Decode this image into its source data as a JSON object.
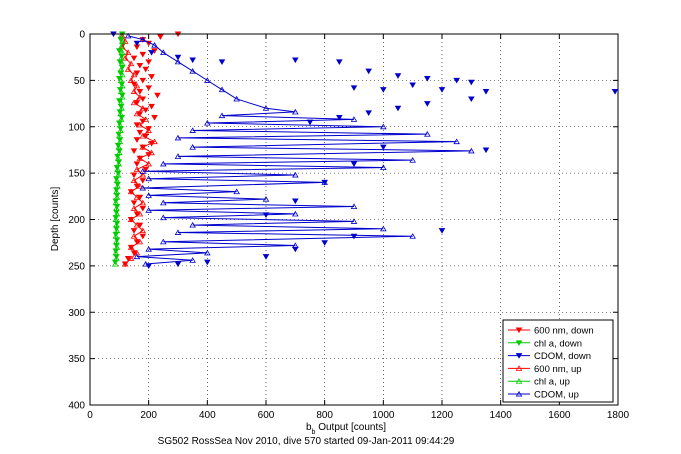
{
  "chart_data": {
    "type": "scatter",
    "xlabel": "b",
    "xlabel_sub": "b",
    "xlabel_rest": " Output [counts]",
    "ylabel": "Depth [counts]",
    "caption": "SG502 RossSea Nov 2010, dive 570 started 09-Jan-2011 09:44:29",
    "xlim": [
      0,
      1800
    ],
    "ylim": [
      0,
      400
    ],
    "y_reversed": true,
    "grid": true,
    "legend_position": "bottom-right",
    "x_ticks": [
      0,
      200,
      400,
      600,
      800,
      1000,
      1200,
      1400,
      1600,
      1800
    ],
    "y_ticks": [
      0,
      50,
      100,
      150,
      200,
      250,
      300,
      350,
      400
    ],
    "series": [
      {
        "name": "600 nm, down",
        "color": "#ff0000",
        "marker": "down",
        "line": false,
        "points": [
          [
            300,
            0
          ],
          [
            240,
            3
          ],
          [
            180,
            6
          ],
          [
            200,
            10
          ],
          [
            160,
            14
          ],
          [
            220,
            18
          ],
          [
            180,
            22
          ],
          [
            150,
            26
          ],
          [
            200,
            30
          ],
          [
            170,
            34
          ],
          [
            190,
            38
          ],
          [
            160,
            42
          ],
          [
            210,
            46
          ],
          [
            180,
            50
          ],
          [
            150,
            54
          ],
          [
            200,
            58
          ],
          [
            170,
            62
          ],
          [
            230,
            66
          ],
          [
            180,
            70
          ],
          [
            160,
            74
          ],
          [
            210,
            78
          ],
          [
            190,
            82
          ],
          [
            170,
            86
          ],
          [
            220,
            90
          ],
          [
            180,
            94
          ],
          [
            160,
            98
          ],
          [
            200,
            102
          ],
          [
            170,
            106
          ],
          [
            190,
            110
          ],
          [
            160,
            114
          ],
          [
            210,
            118
          ],
          [
            180,
            122
          ],
          [
            150,
            126
          ],
          [
            200,
            130
          ],
          [
            170,
            134
          ],
          [
            160,
            140
          ],
          [
            190,
            146
          ],
          [
            150,
            152
          ],
          [
            180,
            158
          ],
          [
            160,
            164
          ],
          [
            140,
            170
          ],
          [
            170,
            176
          ],
          [
            150,
            182
          ],
          [
            180,
            188
          ],
          [
            160,
            194
          ],
          [
            140,
            200
          ],
          [
            170,
            206
          ],
          [
            150,
            212
          ],
          [
            180,
            218
          ],
          [
            160,
            224
          ],
          [
            140,
            230
          ],
          [
            150,
            236
          ],
          [
            130,
            242
          ],
          [
            120,
            248
          ]
        ]
      },
      {
        "name": "chl a, down",
        "color": "#00cc00",
        "marker": "down",
        "line": false,
        "points": [
          [
            110,
            0
          ],
          [
            105,
            6
          ],
          [
            112,
            12
          ],
          [
            100,
            18
          ],
          [
            108,
            24
          ],
          [
            102,
            30
          ],
          [
            110,
            36
          ],
          [
            104,
            42
          ],
          [
            100,
            48
          ],
          [
            108,
            54
          ],
          [
            103,
            60
          ],
          [
            110,
            66
          ],
          [
            100,
            72
          ],
          [
            106,
            78
          ],
          [
            102,
            84
          ],
          [
            108,
            90
          ],
          [
            100,
            96
          ],
          [
            104,
            102
          ],
          [
            98,
            108
          ],
          [
            102,
            114
          ],
          [
            96,
            120
          ],
          [
            100,
            126
          ],
          [
            94,
            132
          ],
          [
            98,
            138
          ],
          [
            92,
            144
          ],
          [
            96,
            150
          ],
          [
            90,
            156
          ],
          [
            94,
            162
          ],
          [
            90,
            168
          ],
          [
            92,
            174
          ],
          [
            88,
            180
          ],
          [
            92,
            186
          ],
          [
            90,
            192
          ],
          [
            88,
            198
          ],
          [
            92,
            204
          ],
          [
            90,
            210
          ],
          [
            88,
            216
          ],
          [
            92,
            222
          ],
          [
            90,
            228
          ],
          [
            88,
            234
          ],
          [
            90,
            240
          ],
          [
            86,
            246
          ]
        ]
      },
      {
        "name": "CDOM, down",
        "color": "#0000cc",
        "marker": "down",
        "line": false,
        "points": [
          [
            80,
            0
          ],
          [
            160,
            10
          ],
          [
            210,
            20
          ],
          [
            300,
            25
          ],
          [
            350,
            28
          ],
          [
            450,
            30
          ],
          [
            700,
            28
          ],
          [
            850,
            30
          ],
          [
            950,
            40
          ],
          [
            1050,
            45
          ],
          [
            1150,
            48
          ],
          [
            1250,
            50
          ],
          [
            1300,
            52
          ],
          [
            1200,
            60
          ],
          [
            1350,
            62
          ],
          [
            1100,
            55
          ],
          [
            1000,
            60
          ],
          [
            900,
            58
          ],
          [
            1790,
            62
          ],
          [
            1300,
            70
          ],
          [
            1150,
            75
          ],
          [
            1050,
            80
          ],
          [
            950,
            85
          ],
          [
            850,
            90
          ],
          [
            750,
            95
          ],
          [
            1350,
            125
          ],
          [
            1000,
            122
          ],
          [
            900,
            140
          ],
          [
            800,
            160
          ],
          [
            700,
            180
          ],
          [
            600,
            195
          ],
          [
            1200,
            212
          ],
          [
            900,
            218
          ],
          [
            800,
            225
          ],
          [
            700,
            232
          ],
          [
            600,
            240
          ],
          [
            400,
            246
          ],
          [
            300,
            248
          ],
          [
            200,
            250
          ]
        ]
      },
      {
        "name": "600 nm, up",
        "color": "#ff0000",
        "marker": "up",
        "line": true,
        "points": [
          [
            120,
            248
          ],
          [
            140,
            242
          ],
          [
            160,
            236
          ],
          [
            140,
            230
          ],
          [
            170,
            224
          ],
          [
            150,
            218
          ],
          [
            180,
            212
          ],
          [
            160,
            206
          ],
          [
            140,
            200
          ],
          [
            170,
            194
          ],
          [
            150,
            188
          ],
          [
            180,
            182
          ],
          [
            160,
            176
          ],
          [
            140,
            170
          ],
          [
            170,
            164
          ],
          [
            150,
            158
          ],
          [
            180,
            152
          ],
          [
            160,
            146
          ],
          [
            200,
            140
          ],
          [
            170,
            134
          ],
          [
            210,
            128
          ],
          [
            180,
            122
          ],
          [
            220,
            116
          ],
          [
            180,
            110
          ],
          [
            200,
            104
          ],
          [
            170,
            98
          ],
          [
            190,
            92
          ],
          [
            160,
            86
          ],
          [
            180,
            80
          ],
          [
            150,
            74
          ],
          [
            170,
            68
          ],
          [
            150,
            62
          ],
          [
            160,
            56
          ],
          [
            140,
            50
          ],
          [
            150,
            44
          ],
          [
            130,
            38
          ],
          [
            140,
            32
          ],
          [
            120,
            26
          ],
          [
            130,
            20
          ],
          [
            110,
            14
          ],
          [
            120,
            8
          ],
          [
            110,
            2
          ]
        ]
      },
      {
        "name": "chl a, up",
        "color": "#00cc00",
        "marker": "up",
        "line": true,
        "points": [
          [
            86,
            248
          ],
          [
            90,
            242
          ],
          [
            88,
            236
          ],
          [
            92,
            230
          ],
          [
            90,
            224
          ],
          [
            88,
            218
          ],
          [
            92,
            212
          ],
          [
            90,
            206
          ],
          [
            88,
            200
          ],
          [
            92,
            194
          ],
          [
            90,
            188
          ],
          [
            88,
            182
          ],
          [
            92,
            176
          ],
          [
            90,
            170
          ],
          [
            94,
            164
          ],
          [
            92,
            158
          ],
          [
            96,
            152
          ],
          [
            94,
            146
          ],
          [
            98,
            140
          ],
          [
            96,
            134
          ],
          [
            100,
            128
          ],
          [
            98,
            122
          ],
          [
            102,
            116
          ],
          [
            100,
            110
          ],
          [
            104,
            104
          ],
          [
            102,
            98
          ],
          [
            106,
            92
          ],
          [
            104,
            86
          ],
          [
            108,
            80
          ],
          [
            106,
            74
          ],
          [
            110,
            68
          ],
          [
            106,
            62
          ],
          [
            110,
            56
          ],
          [
            106,
            50
          ],
          [
            110,
            44
          ],
          [
            106,
            38
          ],
          [
            110,
            32
          ],
          [
            106,
            26
          ],
          [
            110,
            20
          ],
          [
            106,
            14
          ],
          [
            110,
            8
          ],
          [
            106,
            2
          ]
        ]
      },
      {
        "name": "CDOM, up",
        "color": "#0000cc",
        "marker": "up",
        "line": true,
        "points": [
          [
            190,
            248
          ],
          [
            350,
            244
          ],
          [
            160,
            240
          ],
          [
            400,
            236
          ],
          [
            200,
            232
          ],
          [
            700,
            228
          ],
          [
            250,
            224
          ],
          [
            1100,
            218
          ],
          [
            300,
            214
          ],
          [
            1000,
            210
          ],
          [
            350,
            206
          ],
          [
            900,
            202
          ],
          [
            250,
            198
          ],
          [
            700,
            194
          ],
          [
            200,
            190
          ],
          [
            900,
            186
          ],
          [
            250,
            182
          ],
          [
            600,
            178
          ],
          [
            200,
            174
          ],
          [
            500,
            170
          ],
          [
            180,
            166
          ],
          [
            800,
            160
          ],
          [
            200,
            156
          ],
          [
            700,
            152
          ],
          [
            180,
            148
          ],
          [
            1000,
            144
          ],
          [
            250,
            140
          ],
          [
            1100,
            136
          ],
          [
            300,
            132
          ],
          [
            1300,
            126
          ],
          [
            350,
            122
          ],
          [
            1250,
            116
          ],
          [
            300,
            112
          ],
          [
            1150,
            108
          ],
          [
            350,
            104
          ],
          [
            1000,
            100
          ],
          [
            400,
            96
          ],
          [
            900,
            92
          ],
          [
            450,
            88
          ],
          [
            700,
            84
          ],
          [
            600,
            80
          ],
          [
            500,
            70
          ],
          [
            450,
            60
          ],
          [
            400,
            50
          ],
          [
            350,
            40
          ],
          [
            300,
            30
          ],
          [
            250,
            20
          ],
          [
            220,
            12
          ],
          [
            180,
            6
          ],
          [
            130,
            2
          ]
        ]
      }
    ]
  }
}
